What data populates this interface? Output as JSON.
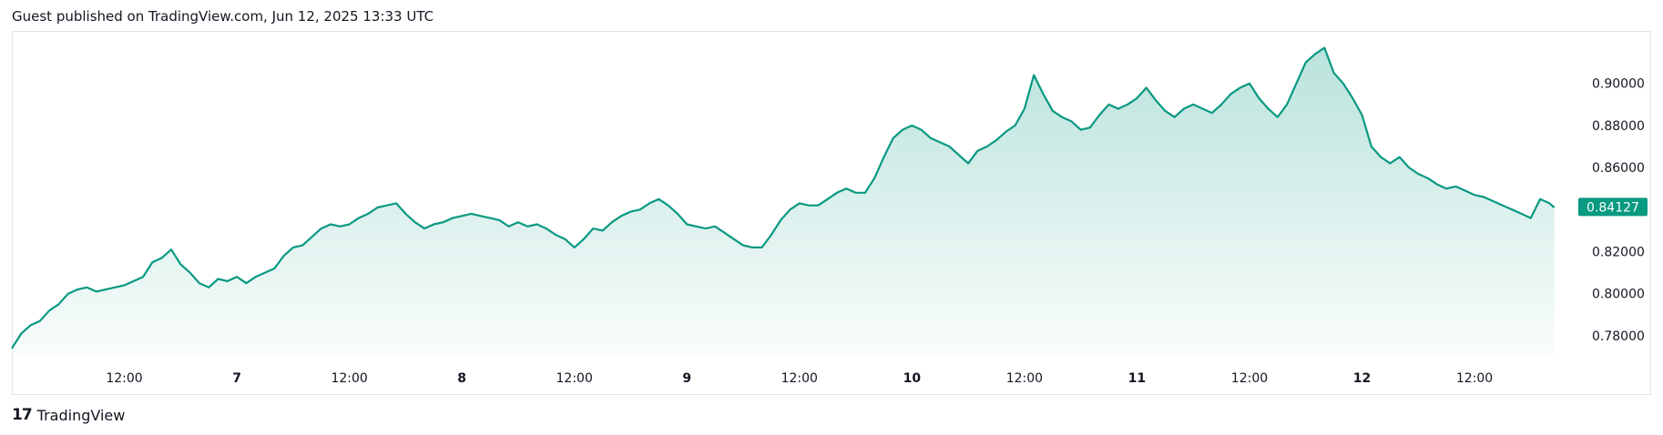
{
  "header": {
    "text": "Guest published on TradingView.com, Jun 12, 2025 13:33 UTC"
  },
  "footer": {
    "logo_glyph": "17",
    "brand": "TradingView"
  },
  "colors": {
    "line": "#089981",
    "fill_top": "#089981",
    "badge": "#089981",
    "grid": "#e0e3eb",
    "text": "#131722"
  },
  "chart_data": {
    "type": "area",
    "title": "",
    "xlabel": "",
    "ylabel": "",
    "ylim": [
      0.77,
      0.925
    ],
    "yticks": [
      0.78,
      0.8,
      0.82,
      0.84,
      0.86,
      0.88,
      0.9
    ],
    "ytick_labels": [
      "0.78000",
      "0.80000",
      "0.82000",
      "0.84000",
      "0.86000",
      "0.88000",
      "0.90000"
    ],
    "xticks": [
      {
        "t": 12,
        "label": "12:00",
        "bold": false
      },
      {
        "t": 24,
        "label": "7",
        "bold": true
      },
      {
        "t": 36,
        "label": "12:00",
        "bold": false
      },
      {
        "t": 48,
        "label": "8",
        "bold": true
      },
      {
        "t": 60,
        "label": "12:00",
        "bold": false
      },
      {
        "t": 72,
        "label": "9",
        "bold": true
      },
      {
        "t": 84,
        "label": "12:00",
        "bold": false
      },
      {
        "t": 96,
        "label": "10",
        "bold": true
      },
      {
        "t": 108,
        "label": "12:00",
        "bold": false
      },
      {
        "t": 120,
        "label": "11",
        "bold": true
      },
      {
        "t": 132,
        "label": "12:00",
        "bold": false
      },
      {
        "t": 144,
        "label": "12",
        "bold": true
      },
      {
        "t": 156,
        "label": "12:00",
        "bold": false
      }
    ],
    "x_range_hours": [
      0,
      166
    ],
    "current_value_label": "0.84127",
    "current_value": 0.84127,
    "series": [
      {
        "points": [
          [
            0,
            0.774
          ],
          [
            1,
            0.781
          ],
          [
            2,
            0.785
          ],
          [
            3,
            0.787
          ],
          [
            4,
            0.792
          ],
          [
            5,
            0.795
          ],
          [
            6,
            0.8
          ],
          [
            7,
            0.802
          ],
          [
            8,
            0.803
          ],
          [
            9,
            0.801
          ],
          [
            10,
            0.802
          ],
          [
            11,
            0.803
          ],
          [
            12,
            0.804
          ],
          [
            13,
            0.806
          ],
          [
            14,
            0.808
          ],
          [
            15,
            0.815
          ],
          [
            16,
            0.817
          ],
          [
            17,
            0.821
          ],
          [
            18,
            0.814
          ],
          [
            19,
            0.81
          ],
          [
            20,
            0.805
          ],
          [
            21,
            0.803
          ],
          [
            22,
            0.807
          ],
          [
            23,
            0.806
          ],
          [
            24,
            0.808
          ],
          [
            25,
            0.805
          ],
          [
            26,
            0.808
          ],
          [
            27,
            0.81
          ],
          [
            28,
            0.812
          ],
          [
            29,
            0.818
          ],
          [
            30,
            0.822
          ],
          [
            31,
            0.823
          ],
          [
            32,
            0.827
          ],
          [
            33,
            0.831
          ],
          [
            34,
            0.833
          ],
          [
            35,
            0.832
          ],
          [
            36,
            0.833
          ],
          [
            37,
            0.836
          ],
          [
            38,
            0.838
          ],
          [
            39,
            0.841
          ],
          [
            40,
            0.842
          ],
          [
            41,
            0.843
          ],
          [
            42,
            0.838
          ],
          [
            43,
            0.834
          ],
          [
            44,
            0.831
          ],
          [
            45,
            0.833
          ],
          [
            46,
            0.834
          ],
          [
            47,
            0.836
          ],
          [
            48,
            0.837
          ],
          [
            49,
            0.838
          ],
          [
            50,
            0.837
          ],
          [
            51,
            0.836
          ],
          [
            52,
            0.835
          ],
          [
            53,
            0.832
          ],
          [
            54,
            0.834
          ],
          [
            55,
            0.832
          ],
          [
            56,
            0.833
          ],
          [
            57,
            0.831
          ],
          [
            58,
            0.828
          ],
          [
            59,
            0.826
          ],
          [
            60,
            0.822
          ],
          [
            61,
            0.826
          ],
          [
            62,
            0.831
          ],
          [
            63,
            0.83
          ],
          [
            64,
            0.834
          ],
          [
            65,
            0.837
          ],
          [
            66,
            0.839
          ],
          [
            67,
            0.84
          ],
          [
            68,
            0.843
          ],
          [
            69,
            0.845
          ],
          [
            70,
            0.842
          ],
          [
            71,
            0.838
          ],
          [
            72,
            0.833
          ],
          [
            73,
            0.832
          ],
          [
            74,
            0.831
          ],
          [
            75,
            0.832
          ],
          [
            76,
            0.829
          ],
          [
            77,
            0.826
          ],
          [
            78,
            0.823
          ],
          [
            79,
            0.822
          ],
          [
            80,
            0.822
          ],
          [
            81,
            0.828
          ],
          [
            82,
            0.835
          ],
          [
            83,
            0.84
          ],
          [
            84,
            0.843
          ],
          [
            85,
            0.842
          ],
          [
            86,
            0.842
          ],
          [
            87,
            0.845
          ],
          [
            88,
            0.848
          ],
          [
            89,
            0.85
          ],
          [
            90,
            0.848
          ],
          [
            91,
            0.848
          ],
          [
            92,
            0.855
          ],
          [
            93,
            0.865
          ],
          [
            94,
            0.874
          ],
          [
            95,
            0.878
          ],
          [
            96,
            0.88
          ],
          [
            97,
            0.878
          ],
          [
            98,
            0.874
          ],
          [
            99,
            0.872
          ],
          [
            100,
            0.87
          ],
          [
            101,
            0.866
          ],
          [
            102,
            0.862
          ],
          [
            103,
            0.868
          ],
          [
            104,
            0.87
          ],
          [
            105,
            0.873
          ],
          [
            106,
            0.877
          ],
          [
            107,
            0.88
          ],
          [
            108,
            0.888
          ],
          [
            109,
            0.904
          ],
          [
            110,
            0.895
          ],
          [
            111,
            0.887
          ],
          [
            112,
            0.884
          ],
          [
            113,
            0.882
          ],
          [
            114,
            0.878
          ],
          [
            115,
            0.879
          ],
          [
            116,
            0.885
          ],
          [
            117,
            0.89
          ],
          [
            118,
            0.888
          ],
          [
            119,
            0.89
          ],
          [
            120,
            0.893
          ],
          [
            121,
            0.898
          ],
          [
            122,
            0.892
          ],
          [
            123,
            0.887
          ],
          [
            124,
            0.884
          ],
          [
            125,
            0.888
          ],
          [
            126,
            0.89
          ],
          [
            127,
            0.888
          ],
          [
            128,
            0.886
          ],
          [
            129,
            0.89
          ],
          [
            130,
            0.895
          ],
          [
            131,
            0.898
          ],
          [
            132,
            0.9
          ],
          [
            133,
            0.893
          ],
          [
            134,
            0.888
          ],
          [
            135,
            0.884
          ],
          [
            136,
            0.89
          ],
          [
            137,
            0.9
          ],
          [
            138,
            0.91
          ],
          [
            139,
            0.914
          ],
          [
            140,
            0.917
          ],
          [
            141,
            0.905
          ],
          [
            142,
            0.9
          ],
          [
            143,
            0.893
          ],
          [
            144,
            0.885
          ],
          [
            145,
            0.87
          ],
          [
            146,
            0.865
          ],
          [
            147,
            0.862
          ],
          [
            148,
            0.865
          ],
          [
            149,
            0.86
          ],
          [
            150,
            0.857
          ],
          [
            151,
            0.855
          ],
          [
            152,
            0.852
          ],
          [
            153,
            0.85
          ],
          [
            154,
            0.851
          ],
          [
            155,
            0.849
          ],
          [
            156,
            0.847
          ],
          [
            157,
            0.846
          ],
          [
            158,
            0.844
          ],
          [
            159,
            0.842
          ],
          [
            160,
            0.84
          ],
          [
            161,
            0.838
          ],
          [
            162,
            0.836
          ],
          [
            163,
            0.845
          ],
          [
            164,
            0.843
          ],
          [
            164.5,
            0.841
          ]
        ]
      }
    ]
  }
}
